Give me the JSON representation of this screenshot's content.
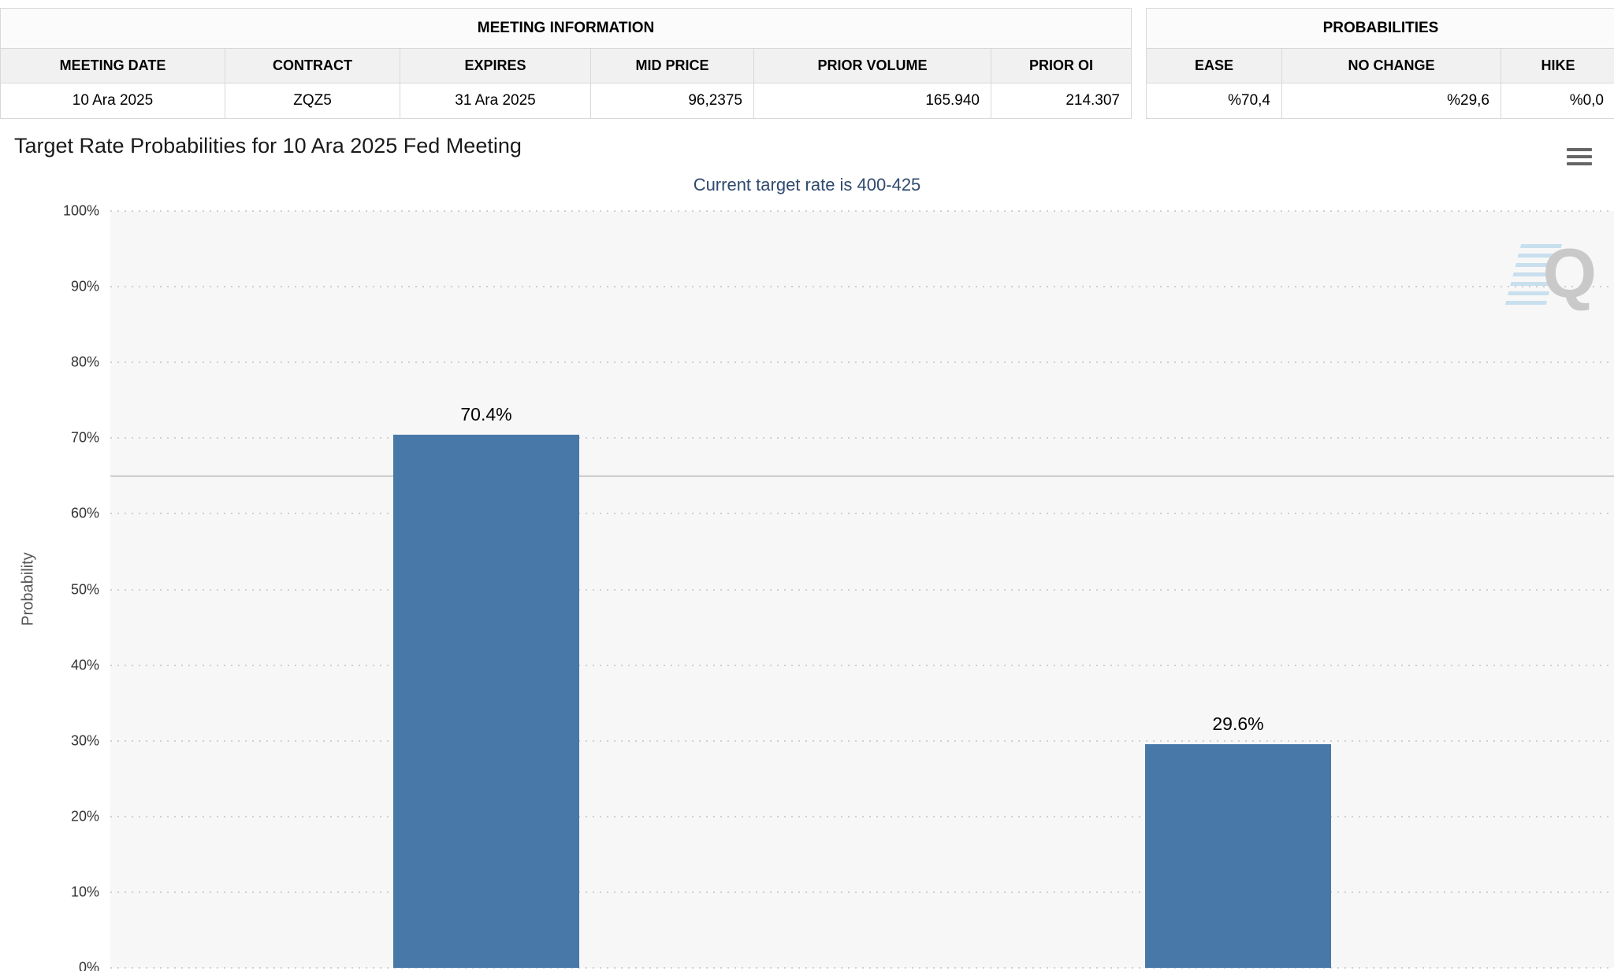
{
  "meeting_info": {
    "title": "MEETING INFORMATION",
    "columns": [
      "MEETING DATE",
      "CONTRACT",
      "EXPIRES",
      "MID PRICE",
      "PRIOR VOLUME",
      "PRIOR OI"
    ],
    "row": [
      "10 Ara 2025",
      "ZQZ5",
      "31 Ara 2025",
      "96,2375",
      "165.940",
      "214.307"
    ]
  },
  "probabilities": {
    "title": "PROBABILITIES",
    "columns": [
      "EASE",
      "NO CHANGE",
      "HIKE"
    ],
    "row": [
      "%70,4",
      "%29,6",
      "%0,0"
    ]
  },
  "chart_data": {
    "type": "bar",
    "title": "Target Rate Probabilities for 10 Ara 2025 Fed Meeting",
    "subtitle": "Current target rate is 400-425",
    "ylabel": "Probability",
    "ylim": [
      0,
      100
    ],
    "ytick_step": 10,
    "ytick_suffix": "%",
    "categories": [
      "",
      ""
    ],
    "series": [
      {
        "name": "Probability",
        "values": [
          70.4,
          29.6
        ]
      }
    ],
    "data_labels": [
      "70.4%",
      "29.6%"
    ],
    "reference_line_value": 64.9,
    "bar_centers_pct": [
      25,
      75
    ],
    "bar_width_pct": 12.4,
    "bar_color": "#4878a8",
    "plot_bg_color": "#f7f7f7",
    "grid": "dotted",
    "legend": "none",
    "watermark": "Q"
  }
}
